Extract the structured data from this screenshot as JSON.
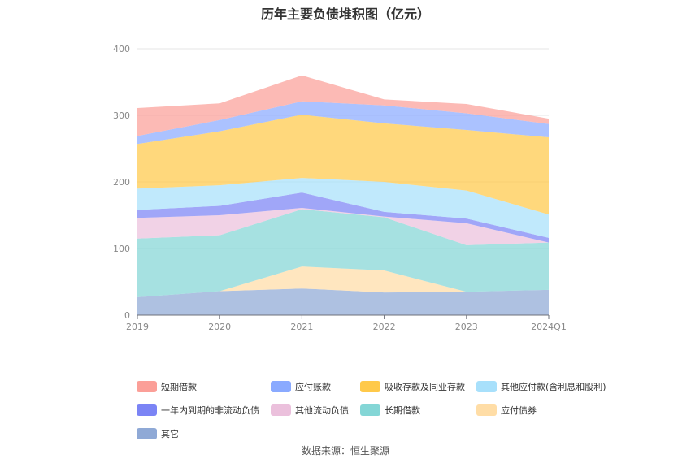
{
  "title": "历年主要负债堆积图（亿元）",
  "source": "数据来源：恒生聚源",
  "chart_data": {
    "type": "area",
    "stacked": true,
    "categories": [
      "2019",
      "2020",
      "2021",
      "2022",
      "2023",
      "2024Q1"
    ],
    "ylim": [
      0,
      400
    ],
    "yticks": [
      0,
      100,
      200,
      300,
      400
    ],
    "grid": true,
    "legend_position": "bottom",
    "series": [
      {
        "name": "其它",
        "color": "#8FA9D6",
        "values": [
          27,
          36,
          40,
          34,
          35,
          38
        ]
      },
      {
        "name": "应付债券",
        "color": "#FFDDA6",
        "values": [
          0,
          0,
          33,
          33,
          0,
          0
        ]
      },
      {
        "name": "长期借款",
        "color": "#84D6D6",
        "values": [
          88,
          84,
          86,
          80,
          70,
          71
        ]
      },
      {
        "name": "其他流动负债",
        "color": "#EBC0DC",
        "values": [
          31,
          30,
          2,
          1,
          33,
          0
        ]
      },
      {
        "name": "一年内到期的非流动负债",
        "color": "#7B84F5",
        "values": [
          12,
          14,
          23,
          7,
          7,
          7
        ]
      },
      {
        "name": "其他应付款(含利息和股利)",
        "color": "#A8E0FB",
        "values": [
          32,
          31,
          22,
          45,
          42,
          35
        ]
      },
      {
        "name": "吸收存款及同业存款",
        "color": "#FFC94A",
        "values": [
          67,
          81,
          95,
          88,
          91,
          116
        ]
      },
      {
        "name": "应付账款",
        "color": "#8AAAFF",
        "values": [
          12,
          17,
          20,
          27,
          25,
          20
        ]
      },
      {
        "name": "短期借款",
        "color": "#FB9F98",
        "values": [
          42,
          25,
          39,
          9,
          14,
          8
        ]
      }
    ],
    "legend_order": [
      "短期借款",
      "应付账款",
      "吸收存款及同业存款",
      "其他应付款(含利息和股利)",
      "一年内到期的非流动负债",
      "其他流动负债",
      "长期借款",
      "应付债券",
      "其它"
    ]
  }
}
